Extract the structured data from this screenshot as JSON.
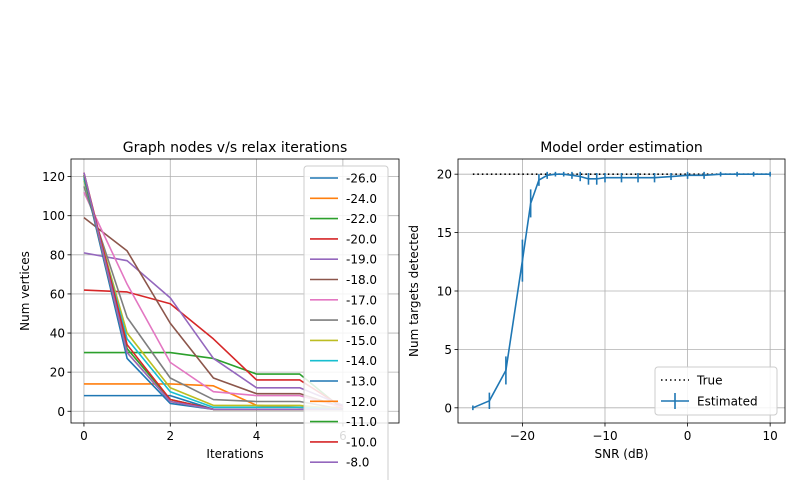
{
  "chart_data": [
    {
      "type": "line",
      "title": "Graph nodes v/s relax iterations",
      "xlabel": "Iterations",
      "ylabel": "Num vertices",
      "xlim": [
        -0.3,
        7.3
      ],
      "ylim": [
        -6,
        129
      ],
      "xticks": [
        0,
        2,
        4,
        6
      ],
      "yticks": [
        0,
        20,
        40,
        60,
        80,
        100,
        120
      ],
      "grid": true,
      "legend_position": "right, overflowing below the axes",
      "x": [
        0,
        1,
        2,
        3,
        4,
        5,
        6
      ],
      "series": [
        {
          "name": "-26.0",
          "color": "#1f77b4",
          "values": [
            8,
            8,
            8,
            1,
            1,
            1,
            1
          ]
        },
        {
          "name": "-24.0",
          "color": "#ff7f0e",
          "values": [
            14,
            14,
            14,
            13,
            3,
            2,
            2
          ]
        },
        {
          "name": "-22.0",
          "color": "#2ca02c",
          "values": [
            30,
            30,
            30,
            27,
            19,
            19,
            1
          ]
        },
        {
          "name": "-20.0",
          "color": "#d62728",
          "values": [
            62,
            61,
            55,
            37,
            16,
            16,
            2
          ]
        },
        {
          "name": "-19.0",
          "color": "#9467bd",
          "values": [
            81,
            77,
            58,
            27,
            12,
            12,
            3
          ]
        },
        {
          "name": "-18.0",
          "color": "#8c564b",
          "values": [
            99,
            82,
            45,
            17,
            9,
            9,
            2
          ]
        },
        {
          "name": "-17.0",
          "color": "#e377c2",
          "values": [
            112,
            65,
            25,
            10,
            8,
            8,
            2
          ]
        },
        {
          "name": "-16.0",
          "color": "#7f7f7f",
          "values": [
            115,
            48,
            17,
            6,
            5,
            5,
            1
          ]
        },
        {
          "name": "-15.0",
          "color": "#bcbd22",
          "values": [
            118,
            40,
            12,
            3,
            3,
            3,
            1
          ]
        },
        {
          "name": "-14.0",
          "color": "#17becf",
          "values": [
            119,
            37,
            10,
            2,
            2,
            2,
            1
          ]
        },
        {
          "name": "-13.0",
          "color": "#1f77b4",
          "values": [
            120,
            27,
            4,
            1,
            1,
            1,
            1
          ]
        },
        {
          "name": "-12.0",
          "color": "#ff7f0e",
          "values": [
            121,
            30,
            5,
            1,
            1,
            1,
            1
          ]
        },
        {
          "name": "-11.0",
          "color": "#2ca02c",
          "values": [
            121,
            32,
            6,
            1,
            1,
            1,
            1
          ]
        },
        {
          "name": "-10.0",
          "color": "#d62728",
          "values": [
            122,
            34,
            6,
            1,
            1,
            1,
            1
          ]
        },
        {
          "name": "-8.0",
          "color": "#9467bd",
          "values": [
            122,
            30,
            5,
            1,
            1,
            1,
            1
          ]
        }
      ]
    },
    {
      "type": "line",
      "title": "Model order estimation",
      "xlabel": "SNR (dB)",
      "ylabel": "Num targets detected",
      "xlim": [
        -27.8,
        11.8
      ],
      "ylim": [
        -1.3,
        21.3
      ],
      "xticks": [
        -20,
        -10,
        0,
        10
      ],
      "yticks": [
        0,
        5,
        10,
        15,
        20
      ],
      "grid": true,
      "legend_position": "lower right",
      "series": [
        {
          "name": "True",
          "color": "#000000",
          "style": "dotted",
          "x": [
            -26,
            10
          ],
          "values": [
            20,
            20
          ]
        },
        {
          "name": "Estimated",
          "color": "#1f77b4",
          "style": "solid-errorbar",
          "x": [
            -26,
            -24,
            -22,
            -20,
            -19,
            -18,
            -17,
            -16,
            -15,
            -14,
            -13,
            -12,
            -11,
            -10,
            -8,
            -6,
            -4,
            -2,
            0,
            2,
            4,
            6,
            8,
            10
          ],
          "values": [
            0,
            0.6,
            3.2,
            12.6,
            17.5,
            19.5,
            19.9,
            20,
            20,
            19.9,
            19.8,
            19.6,
            19.6,
            19.7,
            19.7,
            19.7,
            19.7,
            19.8,
            19.9,
            19.9,
            20,
            20,
            20,
            20
          ],
          "errors": [
            0.2,
            0.7,
            1.2,
            1.8,
            1.2,
            0.5,
            0.3,
            0.2,
            0.2,
            0.3,
            0.4,
            0.5,
            0.5,
            0.4,
            0.4,
            0.4,
            0.4,
            0.3,
            0.3,
            0.3,
            0.2,
            0.2,
            0.2,
            0.2
          ]
        }
      ]
    }
  ]
}
